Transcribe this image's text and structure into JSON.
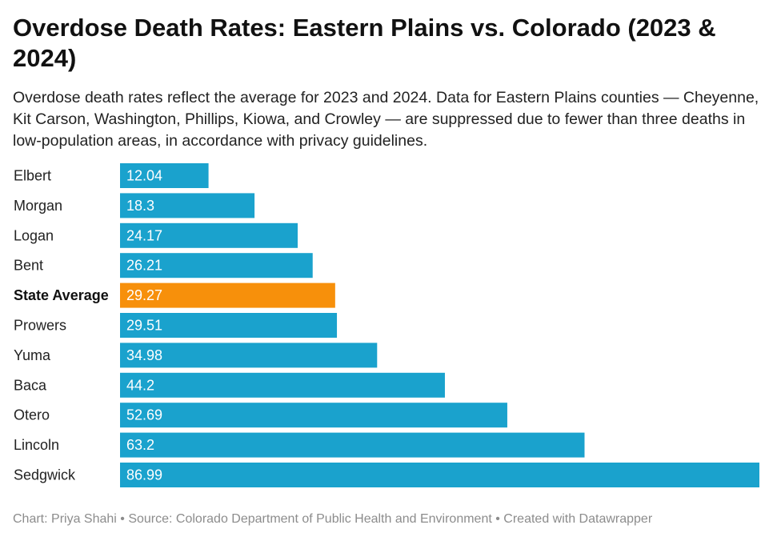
{
  "title": "Overdose Death Rates: Eastern Plains vs. Colorado (2023 & 2024)",
  "subtitle": "Overdose death rates reflect the average for 2023 and 2024. Data for Eastern Plains counties — Cheyenne, Kit Carson, Washington, Phillips, Kiowa, and Crowley — are suppressed due to fewer than three deaths in low-population areas, in accordance with privacy guidelines.",
  "footer": {
    "text": "Chart: Priya Shahi • Source: Colorado Department of Public Health and Environment • Created with Datawrapper"
  },
  "chart_data": {
    "type": "bar",
    "orientation": "horizontal",
    "categories": [
      "Elbert",
      "Morgan",
      "Logan",
      "Bent",
      "State Average",
      "Prowers",
      "Yuma",
      "Baca",
      "Otero",
      "Lincoln",
      "Sedgwick"
    ],
    "values": [
      12.04,
      18.3,
      24.17,
      26.21,
      29.27,
      29.51,
      34.98,
      44.2,
      52.69,
      63.2,
      86.99
    ],
    "value_labels": [
      "12.04",
      "18.3",
      "24.17",
      "26.21",
      "29.27",
      "29.51",
      "34.98",
      "44.2",
      "52.69",
      "63.2",
      "86.99"
    ],
    "highlight": "State Average",
    "colors": {
      "default": "#1aa2cd",
      "highlight": "#f7900b"
    },
    "xlim": [
      0,
      86.99
    ],
    "grid": false,
    "legend": "none"
  }
}
